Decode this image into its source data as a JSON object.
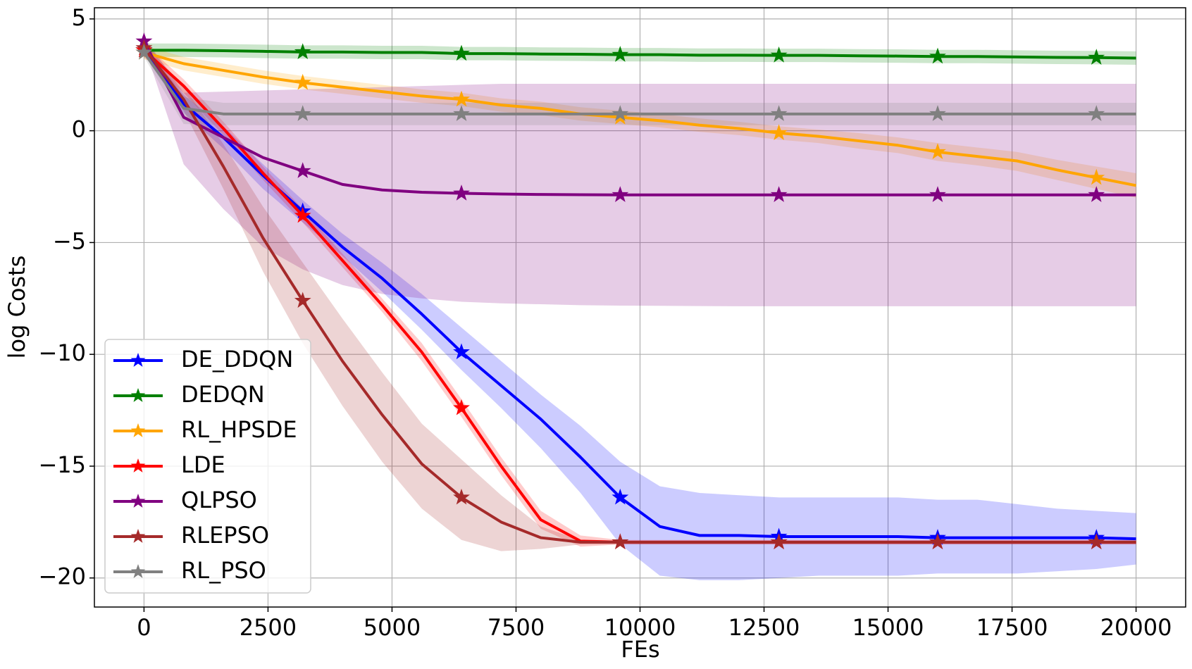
{
  "chart_data": {
    "type": "line",
    "xlabel": "FEs",
    "ylabel": "log Costs",
    "x": [
      0,
      800,
      1600,
      2400,
      3200,
      4000,
      4800,
      5600,
      6400,
      7200,
      8000,
      8800,
      9600,
      10400,
      11200,
      12000,
      12800,
      13600,
      14400,
      15200,
      16000,
      16800,
      17600,
      18400,
      19200,
      20000
    ],
    "marker_every": 4,
    "xlim": [
      -1000,
      21000
    ],
    "ylim": [
      -21.3,
      5.5
    ],
    "xticks": [
      0,
      2500,
      5000,
      7500,
      10000,
      12500,
      15000,
      17500,
      20000
    ],
    "yticks": [
      {
        "value": -20,
        "label": "−20"
      },
      {
        "value": -15,
        "label": "−15"
      },
      {
        "value": -10,
        "label": "−10"
      },
      {
        "value": -5,
        "label": "−5"
      },
      0,
      5
    ],
    "grid": true,
    "legend": "lower left",
    "series": [
      {
        "name": "DE_DDQN",
        "color": "#0000ff",
        "values": [
          3.6,
          1.2,
          -0.3,
          -2.0,
          -3.6,
          -5.2,
          -6.6,
          -8.2,
          -9.9,
          -11.4,
          -12.9,
          -14.6,
          -16.4,
          -17.7,
          -18.1,
          -18.1,
          -18.15,
          -18.15,
          -18.15,
          -18.15,
          -18.2,
          -18.2,
          -18.2,
          -18.2,
          -18.2,
          -18.25
        ],
        "lower": [
          3.4,
          0.8,
          -0.8,
          -2.6,
          -4.1,
          -5.6,
          -7.2,
          -8.9,
          -10.7,
          -12.4,
          -14.2,
          -16.2,
          -18.5,
          -19.9,
          -20.1,
          -20.1,
          -20.0,
          -19.9,
          -19.9,
          -19.9,
          -19.8,
          -19.8,
          -19.8,
          -19.7,
          -19.6,
          -19.4
        ],
        "upper": [
          3.8,
          1.6,
          0.2,
          -1.5,
          -3.1,
          -4.6,
          -5.9,
          -7.3,
          -8.8,
          -10.3,
          -11.8,
          -13.2,
          -14.8,
          -15.9,
          -16.2,
          -16.3,
          -16.4,
          -16.4,
          -16.4,
          -16.4,
          -16.5,
          -16.5,
          -16.7,
          -16.9,
          -17.0,
          -17.1
        ]
      },
      {
        "name": "DEDQN",
        "color": "#008000",
        "values": [
          3.6,
          3.6,
          3.58,
          3.55,
          3.52,
          3.52,
          3.5,
          3.5,
          3.45,
          3.45,
          3.43,
          3.42,
          3.4,
          3.4,
          3.38,
          3.38,
          3.37,
          3.37,
          3.35,
          3.34,
          3.32,
          3.32,
          3.3,
          3.28,
          3.27,
          3.25
        ],
        "lower": [
          3.3,
          3.3,
          3.28,
          3.25,
          3.22,
          3.22,
          3.2,
          3.2,
          3.15,
          3.15,
          3.13,
          3.12,
          3.1,
          3.1,
          3.08,
          3.08,
          3.07,
          3.07,
          3.05,
          3.04,
          3.02,
          3.02,
          3.0,
          2.98,
          2.97,
          2.95
        ],
        "upper": [
          3.9,
          3.9,
          3.88,
          3.85,
          3.82,
          3.82,
          3.8,
          3.8,
          3.75,
          3.75,
          3.73,
          3.72,
          3.7,
          3.7,
          3.68,
          3.68,
          3.67,
          3.67,
          3.65,
          3.64,
          3.62,
          3.62,
          3.6,
          3.58,
          3.57,
          3.55
        ]
      },
      {
        "name": "RL_HPSDE",
        "color": "#ffa500",
        "values": [
          3.5,
          3.0,
          2.7,
          2.4,
          2.15,
          1.95,
          1.75,
          1.55,
          1.4,
          1.15,
          1.0,
          0.75,
          0.6,
          0.45,
          0.25,
          0.1,
          -0.1,
          -0.25,
          -0.45,
          -0.65,
          -0.95,
          -1.15,
          -1.35,
          -1.75,
          -2.1,
          -2.45
        ],
        "lower": [
          3.2,
          2.7,
          2.4,
          2.1,
          1.85,
          1.65,
          1.45,
          1.25,
          1.1,
          0.85,
          0.7,
          0.45,
          0.3,
          0.15,
          -0.05,
          -0.2,
          -0.4,
          -0.55,
          -0.8,
          -1.0,
          -1.35,
          -1.55,
          -1.8,
          -2.2,
          -2.6,
          -3.0
        ],
        "upper": [
          3.8,
          3.3,
          3.0,
          2.7,
          2.45,
          2.25,
          2.05,
          1.85,
          1.7,
          1.45,
          1.3,
          1.05,
          0.9,
          0.75,
          0.55,
          0.4,
          0.2,
          0.05,
          -0.1,
          -0.3,
          -0.55,
          -0.75,
          -0.95,
          -1.3,
          -1.6,
          -1.9
        ]
      },
      {
        "name": "LDE",
        "color": "#ff0000",
        "values": [
          3.6,
          2.0,
          0.1,
          -1.9,
          -3.8,
          -5.8,
          -7.8,
          -9.9,
          -12.4,
          -15.0,
          -17.4,
          -18.35,
          -18.4,
          -18.4,
          -18.4,
          -18.4,
          -18.4,
          -18.4,
          -18.4,
          -18.4,
          -18.4,
          -18.4,
          -18.4,
          -18.4,
          -18.4,
          -18.4
        ],
        "lower": [
          3.3,
          1.7,
          -0.2,
          -2.2,
          -4.1,
          -6.1,
          -8.1,
          -10.3,
          -12.8,
          -15.4,
          -17.8,
          -18.6,
          -18.5,
          -18.5,
          -18.5,
          -18.5,
          -18.5,
          -18.5,
          -18.5,
          -18.5,
          -18.5,
          -18.5,
          -18.5,
          -18.5,
          -18.5,
          -18.5
        ],
        "upper": [
          3.9,
          2.3,
          0.4,
          -1.6,
          -3.5,
          -5.5,
          -7.5,
          -9.5,
          -12.0,
          -14.6,
          -17.0,
          -18.1,
          -18.3,
          -18.3,
          -18.3,
          -18.3,
          -18.3,
          -18.3,
          -18.3,
          -18.3,
          -18.3,
          -18.3,
          -18.3,
          -18.3,
          -18.3,
          -18.3
        ]
      },
      {
        "name": "QLPSO",
        "color": "#800080",
        "values": [
          4.0,
          0.6,
          -0.3,
          -1.2,
          -1.8,
          -2.4,
          -2.65,
          -2.75,
          -2.8,
          -2.83,
          -2.85,
          -2.86,
          -2.87,
          -2.87,
          -2.87,
          -2.87,
          -2.87,
          -2.87,
          -2.87,
          -2.87,
          -2.87,
          -2.87,
          -2.87,
          -2.87,
          -2.87,
          -2.87
        ],
        "lower": [
          3.8,
          -1.5,
          -3.5,
          -5.2,
          -6.2,
          -6.9,
          -7.3,
          -7.5,
          -7.65,
          -7.72,
          -7.76,
          -7.8,
          -7.82,
          -7.83,
          -7.84,
          -7.85,
          -7.85,
          -7.85,
          -7.85,
          -7.85,
          -7.85,
          -7.85,
          -7.85,
          -7.85,
          -7.85,
          -7.85
        ],
        "upper": [
          4.2,
          1.7,
          1.75,
          1.8,
          1.85,
          1.9,
          1.95,
          2.0,
          2.05,
          2.1,
          2.1,
          2.1,
          2.1,
          2.1,
          2.1,
          2.1,
          2.1,
          2.1,
          2.1,
          2.1,
          2.1,
          2.1,
          2.1,
          2.1,
          2.1,
          2.1
        ]
      },
      {
        "name": "RLEPSO",
        "color": "#a52a2a",
        "values": [
          3.7,
          1.4,
          -1.6,
          -4.8,
          -7.6,
          -10.3,
          -12.7,
          -14.9,
          -16.4,
          -17.5,
          -18.2,
          -18.4,
          -18.4,
          -18.4,
          -18.4,
          -18.4,
          -18.4,
          -18.4,
          -18.4,
          -18.4,
          -18.4,
          -18.4,
          -18.4,
          -18.4,
          -18.4,
          -18.4
        ],
        "lower": [
          3.5,
          0.9,
          -2.6,
          -6.3,
          -9.5,
          -12.3,
          -14.8,
          -16.9,
          -18.3,
          -18.8,
          -18.7,
          -18.5,
          -18.5,
          -18.5,
          -18.5,
          -18.5,
          -18.5,
          -18.5,
          -18.5,
          -18.5,
          -18.5,
          -18.5,
          -18.5,
          -18.5,
          -18.5,
          -18.5
        ],
        "upper": [
          3.9,
          2.0,
          -0.6,
          -3.4,
          -5.9,
          -8.4,
          -10.8,
          -13.1,
          -14.7,
          -16.3,
          -17.7,
          -18.3,
          -18.35,
          -18.35,
          -18.35,
          -18.35,
          -18.35,
          -18.35,
          -18.35,
          -18.35,
          -18.35,
          -18.35,
          -18.35,
          -18.35,
          -18.35,
          -18.35
        ]
      },
      {
        "name": "RL_PSO",
        "color": "#808080",
        "values": [
          3.5,
          1.0,
          0.75,
          0.75,
          0.75,
          0.75,
          0.75,
          0.75,
          0.75,
          0.75,
          0.75,
          0.75,
          0.75,
          0.75,
          0.75,
          0.75,
          0.75,
          0.75,
          0.75,
          0.75,
          0.75,
          0.75,
          0.75,
          0.75,
          0.75,
          0.75
        ],
        "lower": [
          3.3,
          0.3,
          0.25,
          0.25,
          0.25,
          0.25,
          0.25,
          0.25,
          0.25,
          0.25,
          0.25,
          0.25,
          0.25,
          0.25,
          0.25,
          0.25,
          0.25,
          0.25,
          0.25,
          0.25,
          0.25,
          0.25,
          0.25,
          0.25,
          0.25,
          0.25
        ],
        "upper": [
          3.7,
          1.5,
          1.25,
          1.25,
          1.25,
          1.25,
          1.25,
          1.25,
          1.25,
          1.25,
          1.25,
          1.25,
          1.25,
          1.25,
          1.25,
          1.25,
          1.25,
          1.25,
          1.25,
          1.25,
          1.25,
          1.25,
          1.25,
          1.25,
          1.25,
          1.25
        ]
      }
    ]
  }
}
